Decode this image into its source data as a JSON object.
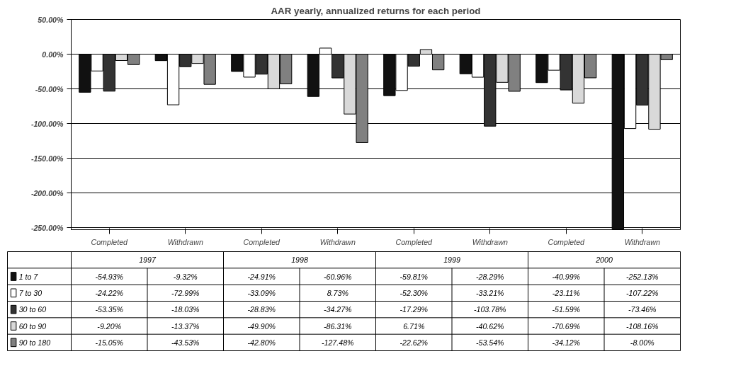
{
  "chart_data": {
    "type": "bar",
    "title": "AAR yearly, annualized returns for each period",
    "categories": [
      "Completed",
      "Withdrawn",
      "Completed",
      "Withdrawn",
      "Completed",
      "Withdrawn",
      "Completed",
      "Withdrawn"
    ],
    "annotations": [
      "1997",
      "1998",
      "1999",
      "2000"
    ],
    "series": [
      {
        "name": "1 to 7",
        "color": "#111111",
        "values": [
          -54.93,
          -9.32,
          -24.91,
          -60.96,
          -59.81,
          -28.29,
          -40.99,
          -252.13
        ],
        "value_labels": [
          "-54.93%",
          "-9.32%",
          "-24.91%",
          "-60.96%",
          "-59.81%",
          "-28.29%",
          "-40.99%",
          "-252.13%"
        ]
      },
      {
        "name": "7 to 30",
        "color": "#ffffff",
        "values": [
          -24.22,
          -72.99,
          -33.09,
          8.73,
          -52.3,
          -33.21,
          -23.11,
          -107.22
        ],
        "value_labels": [
          "-24.22%",
          "-72.99%",
          "-33.09%",
          "8.73%",
          "-52.30%",
          "-33.21%",
          "-23.11%",
          "-107.22%"
        ]
      },
      {
        "name": "30 to 60",
        "color": "#333333",
        "values": [
          -53.35,
          -18.03,
          -28.83,
          -34.27,
          -17.29,
          -103.78,
          -51.59,
          -73.46
        ],
        "value_labels": [
          "-53.35%",
          "-18.03%",
          "-28.83%",
          "-34.27%",
          "-17.29%",
          "-103.78%",
          "-51.59%",
          "-73.46%"
        ]
      },
      {
        "name": "60 to 90",
        "color": "#d9d9d9",
        "values": [
          -9.2,
          -13.37,
          -49.9,
          -86.31,
          6.71,
          -40.62,
          -70.69,
          -108.16
        ],
        "value_labels": [
          "-9.20%",
          "-13.37%",
          "-49.90%",
          "-86.31%",
          "6.71%",
          "-40.62%",
          "-70.69%",
          "-108.16%"
        ]
      },
      {
        "name": "90 to 180",
        "color": "#808080",
        "values": [
          -15.05,
          -43.53,
          -42.8,
          -127.48,
          -22.62,
          -53.54,
          -34.12,
          -8.0
        ],
        "value_labels": [
          "-15.05%",
          "-43.53%",
          "-42.80%",
          "-127.48%",
          "-22.62%",
          "-53.54%",
          "-34.12%",
          "-8.00%"
        ]
      }
    ],
    "ylim": [
      -253,
      50
    ],
    "yticks": [
      {
        "value": 50,
        "label": "50.00%"
      },
      {
        "value": 0,
        "label": "0.00%"
      },
      {
        "value": -50,
        "label": "-50.00%"
      },
      {
        "value": -100,
        "label": "-100.00%"
      },
      {
        "value": -150,
        "label": "-150.00%"
      },
      {
        "value": -200,
        "label": "-200.00%"
      },
      {
        "value": -250,
        "label": "-250.00%"
      }
    ],
    "grid": "y",
    "legend": "bottom"
  }
}
